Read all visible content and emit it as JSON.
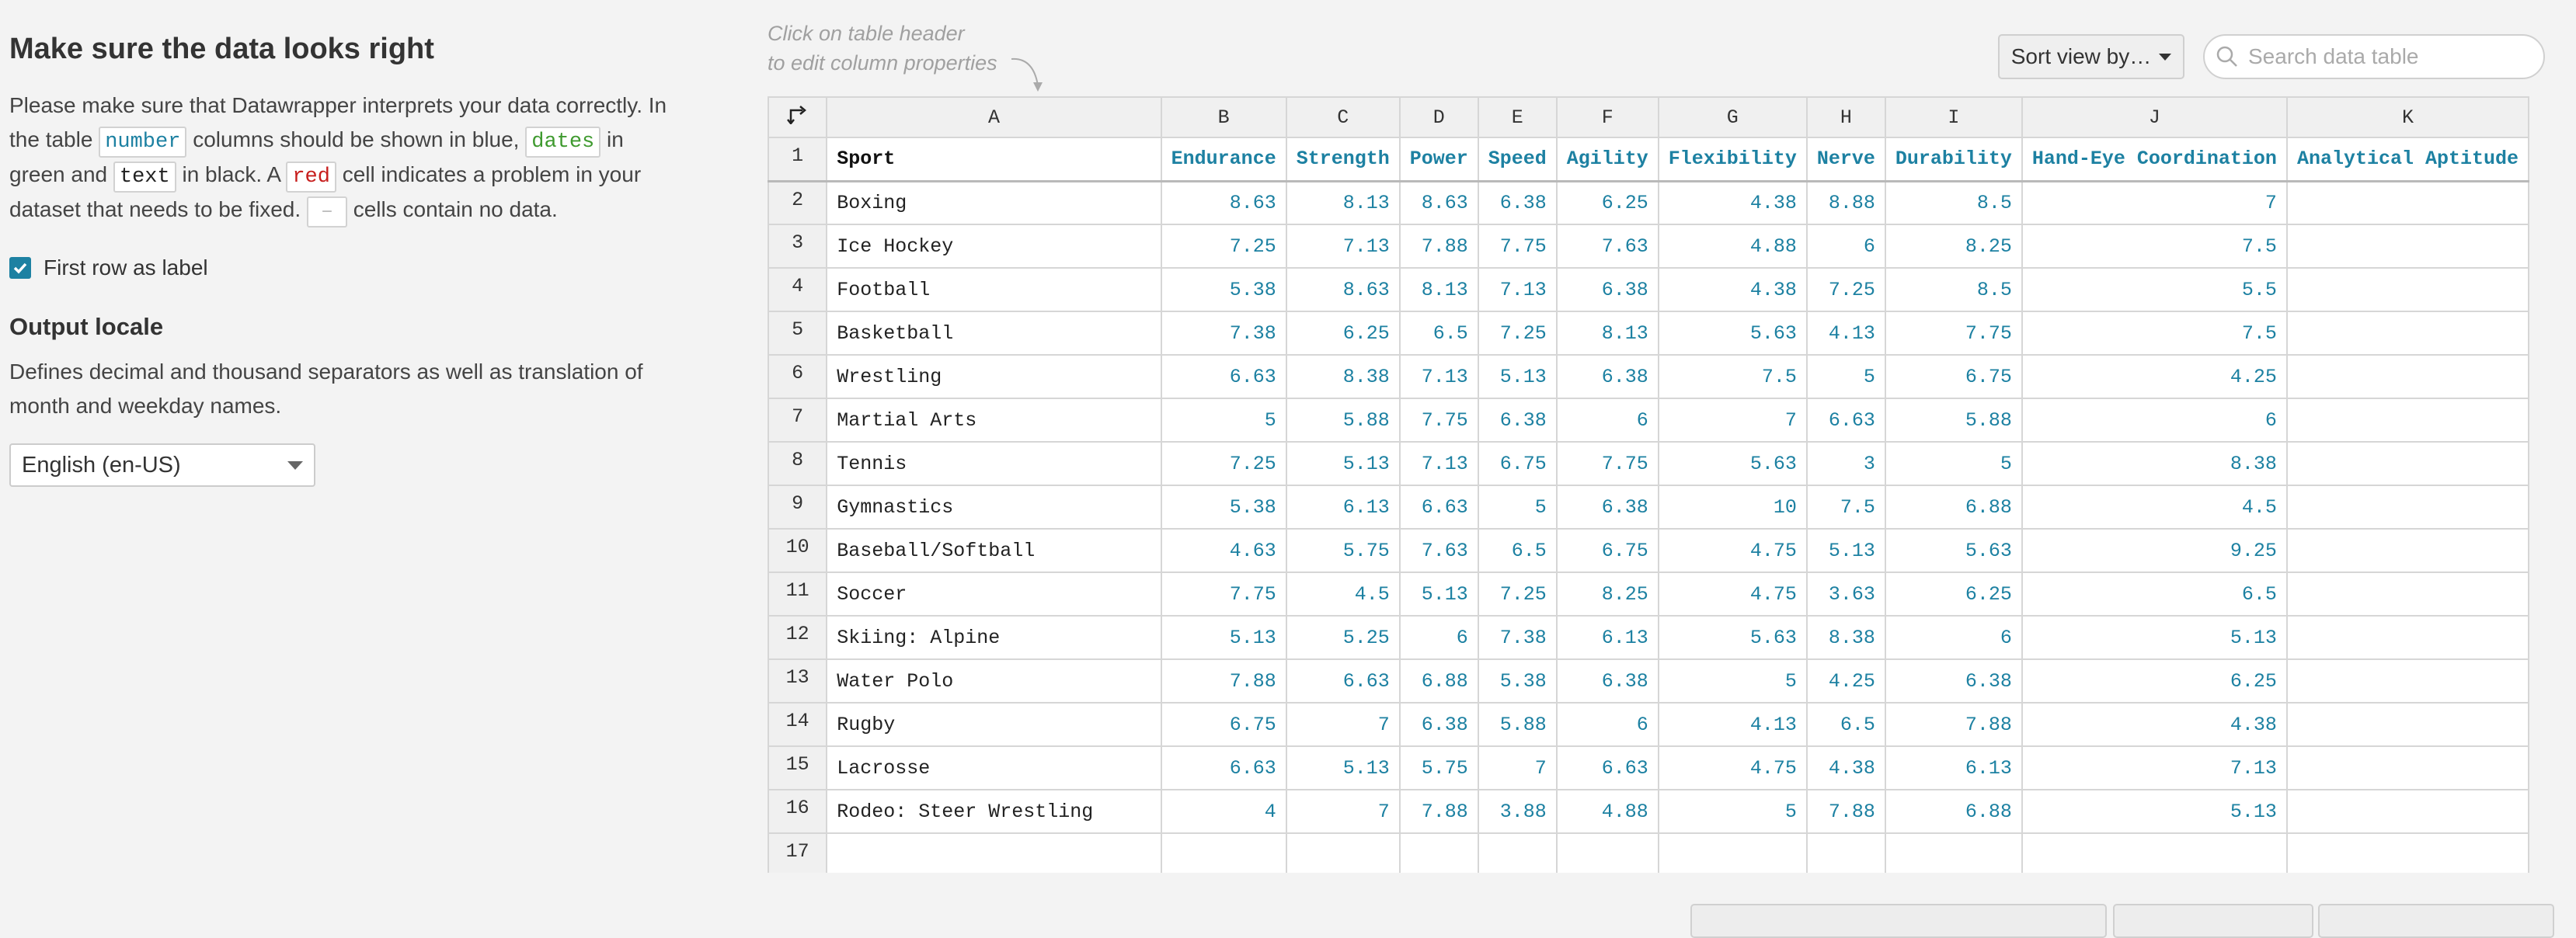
{
  "left": {
    "title": "Make sure the data looks right",
    "p1_a": "Please make sure that Datawrapper interprets your data correctly. In the table ",
    "chip_number": "number",
    "p1_b": " columns should be shown in blue, ",
    "chip_dates": "dates",
    "p1_c": " in green and ",
    "chip_text": "text",
    "p1_d": " in black. A ",
    "chip_red": "red",
    "p1_e": " cell indicates a problem in your dataset that needs to be fixed. ",
    "chip_empty": "–",
    "p1_f": " cells contain no data.",
    "checkbox_label": "First row as label",
    "checkbox_checked": true,
    "locale_heading": "Output locale",
    "locale_desc": "Defines decimal and thousand separators as well as translation of month and weekday names.",
    "locale_value": "English (en-US)"
  },
  "toolbar": {
    "hint_line1": "Click on table header",
    "hint_line2": "to edit column properties",
    "sort_label": "Sort view by…",
    "search_placeholder": "Search data table"
  },
  "table": {
    "column_letters": [
      "A",
      "B",
      "C",
      "D",
      "E",
      "F",
      "G",
      "H",
      "I",
      "J",
      "K"
    ],
    "label_row": [
      "Sport",
      "Endurance",
      "Strength",
      "Power",
      "Speed",
      "Agility",
      "Flexibility",
      "Nerve",
      "Durability",
      "Hand-Eye Coordination",
      "Analytical Aptitude"
    ],
    "rows": [
      [
        "Boxing",
        "8.63",
        "8.13",
        "8.63",
        "6.38",
        "6.25",
        "4.38",
        "8.88",
        "8.5",
        "7",
        ""
      ],
      [
        "Ice Hockey",
        "7.25",
        "7.13",
        "7.88",
        "7.75",
        "7.63",
        "4.88",
        "6",
        "8.25",
        "7.5",
        ""
      ],
      [
        "Football",
        "5.38",
        "8.63",
        "8.13",
        "7.13",
        "6.38",
        "4.38",
        "7.25",
        "8.5",
        "5.5",
        ""
      ],
      [
        "Basketball",
        "7.38",
        "6.25",
        "6.5",
        "7.25",
        "8.13",
        "5.63",
        "4.13",
        "7.75",
        "7.5",
        ""
      ],
      [
        "Wrestling",
        "6.63",
        "8.38",
        "7.13",
        "5.13",
        "6.38",
        "7.5",
        "5",
        "6.75",
        "4.25",
        ""
      ],
      [
        "Martial Arts",
        "5",
        "5.88",
        "7.75",
        "6.38",
        "6",
        "7",
        "6.63",
        "5.88",
        "6",
        ""
      ],
      [
        "Tennis",
        "7.25",
        "5.13",
        "7.13",
        "6.75",
        "7.75",
        "5.63",
        "3",
        "5",
        "8.38",
        ""
      ],
      [
        "Gymnastics",
        "5.38",
        "6.13",
        "6.63",
        "5",
        "6.38",
        "10",
        "7.5",
        "6.88",
        "4.5",
        ""
      ],
      [
        "Baseball/Softball",
        "4.63",
        "5.75",
        "7.63",
        "6.5",
        "6.75",
        "4.75",
        "5.13",
        "5.63",
        "9.25",
        ""
      ],
      [
        "Soccer",
        "7.75",
        "4.5",
        "5.13",
        "7.25",
        "8.25",
        "4.75",
        "3.63",
        "6.25",
        "6.5",
        ""
      ],
      [
        "Skiing: Alpine",
        "5.13",
        "5.25",
        "6",
        "7.38",
        "6.13",
        "5.63",
        "8.38",
        "6",
        "5.13",
        ""
      ],
      [
        "Water Polo",
        "7.88",
        "6.63",
        "6.88",
        "5.38",
        "6.38",
        "5",
        "4.25",
        "6.38",
        "6.25",
        ""
      ],
      [
        "Rugby",
        "6.75",
        "7",
        "6.38",
        "5.88",
        "6",
        "4.13",
        "6.5",
        "7.88",
        "4.38",
        ""
      ],
      [
        "Lacrosse",
        "6.63",
        "5.13",
        "5.75",
        "7",
        "6.63",
        "4.75",
        "4.38",
        "6.13",
        "7.13",
        ""
      ],
      [
        "Rodeo: Steer Wrestling",
        "4",
        "7",
        "7.88",
        "3.88",
        "4.88",
        "5",
        "7.88",
        "6.88",
        "5.13",
        ""
      ],
      [
        "",
        "",
        "",
        "",
        "",
        "",
        "",
        "",
        "",
        "",
        ""
      ]
    ]
  },
  "colors": {
    "number": "#1d81a2",
    "date": "#3f9a2f",
    "error": "#c71e1d"
  }
}
